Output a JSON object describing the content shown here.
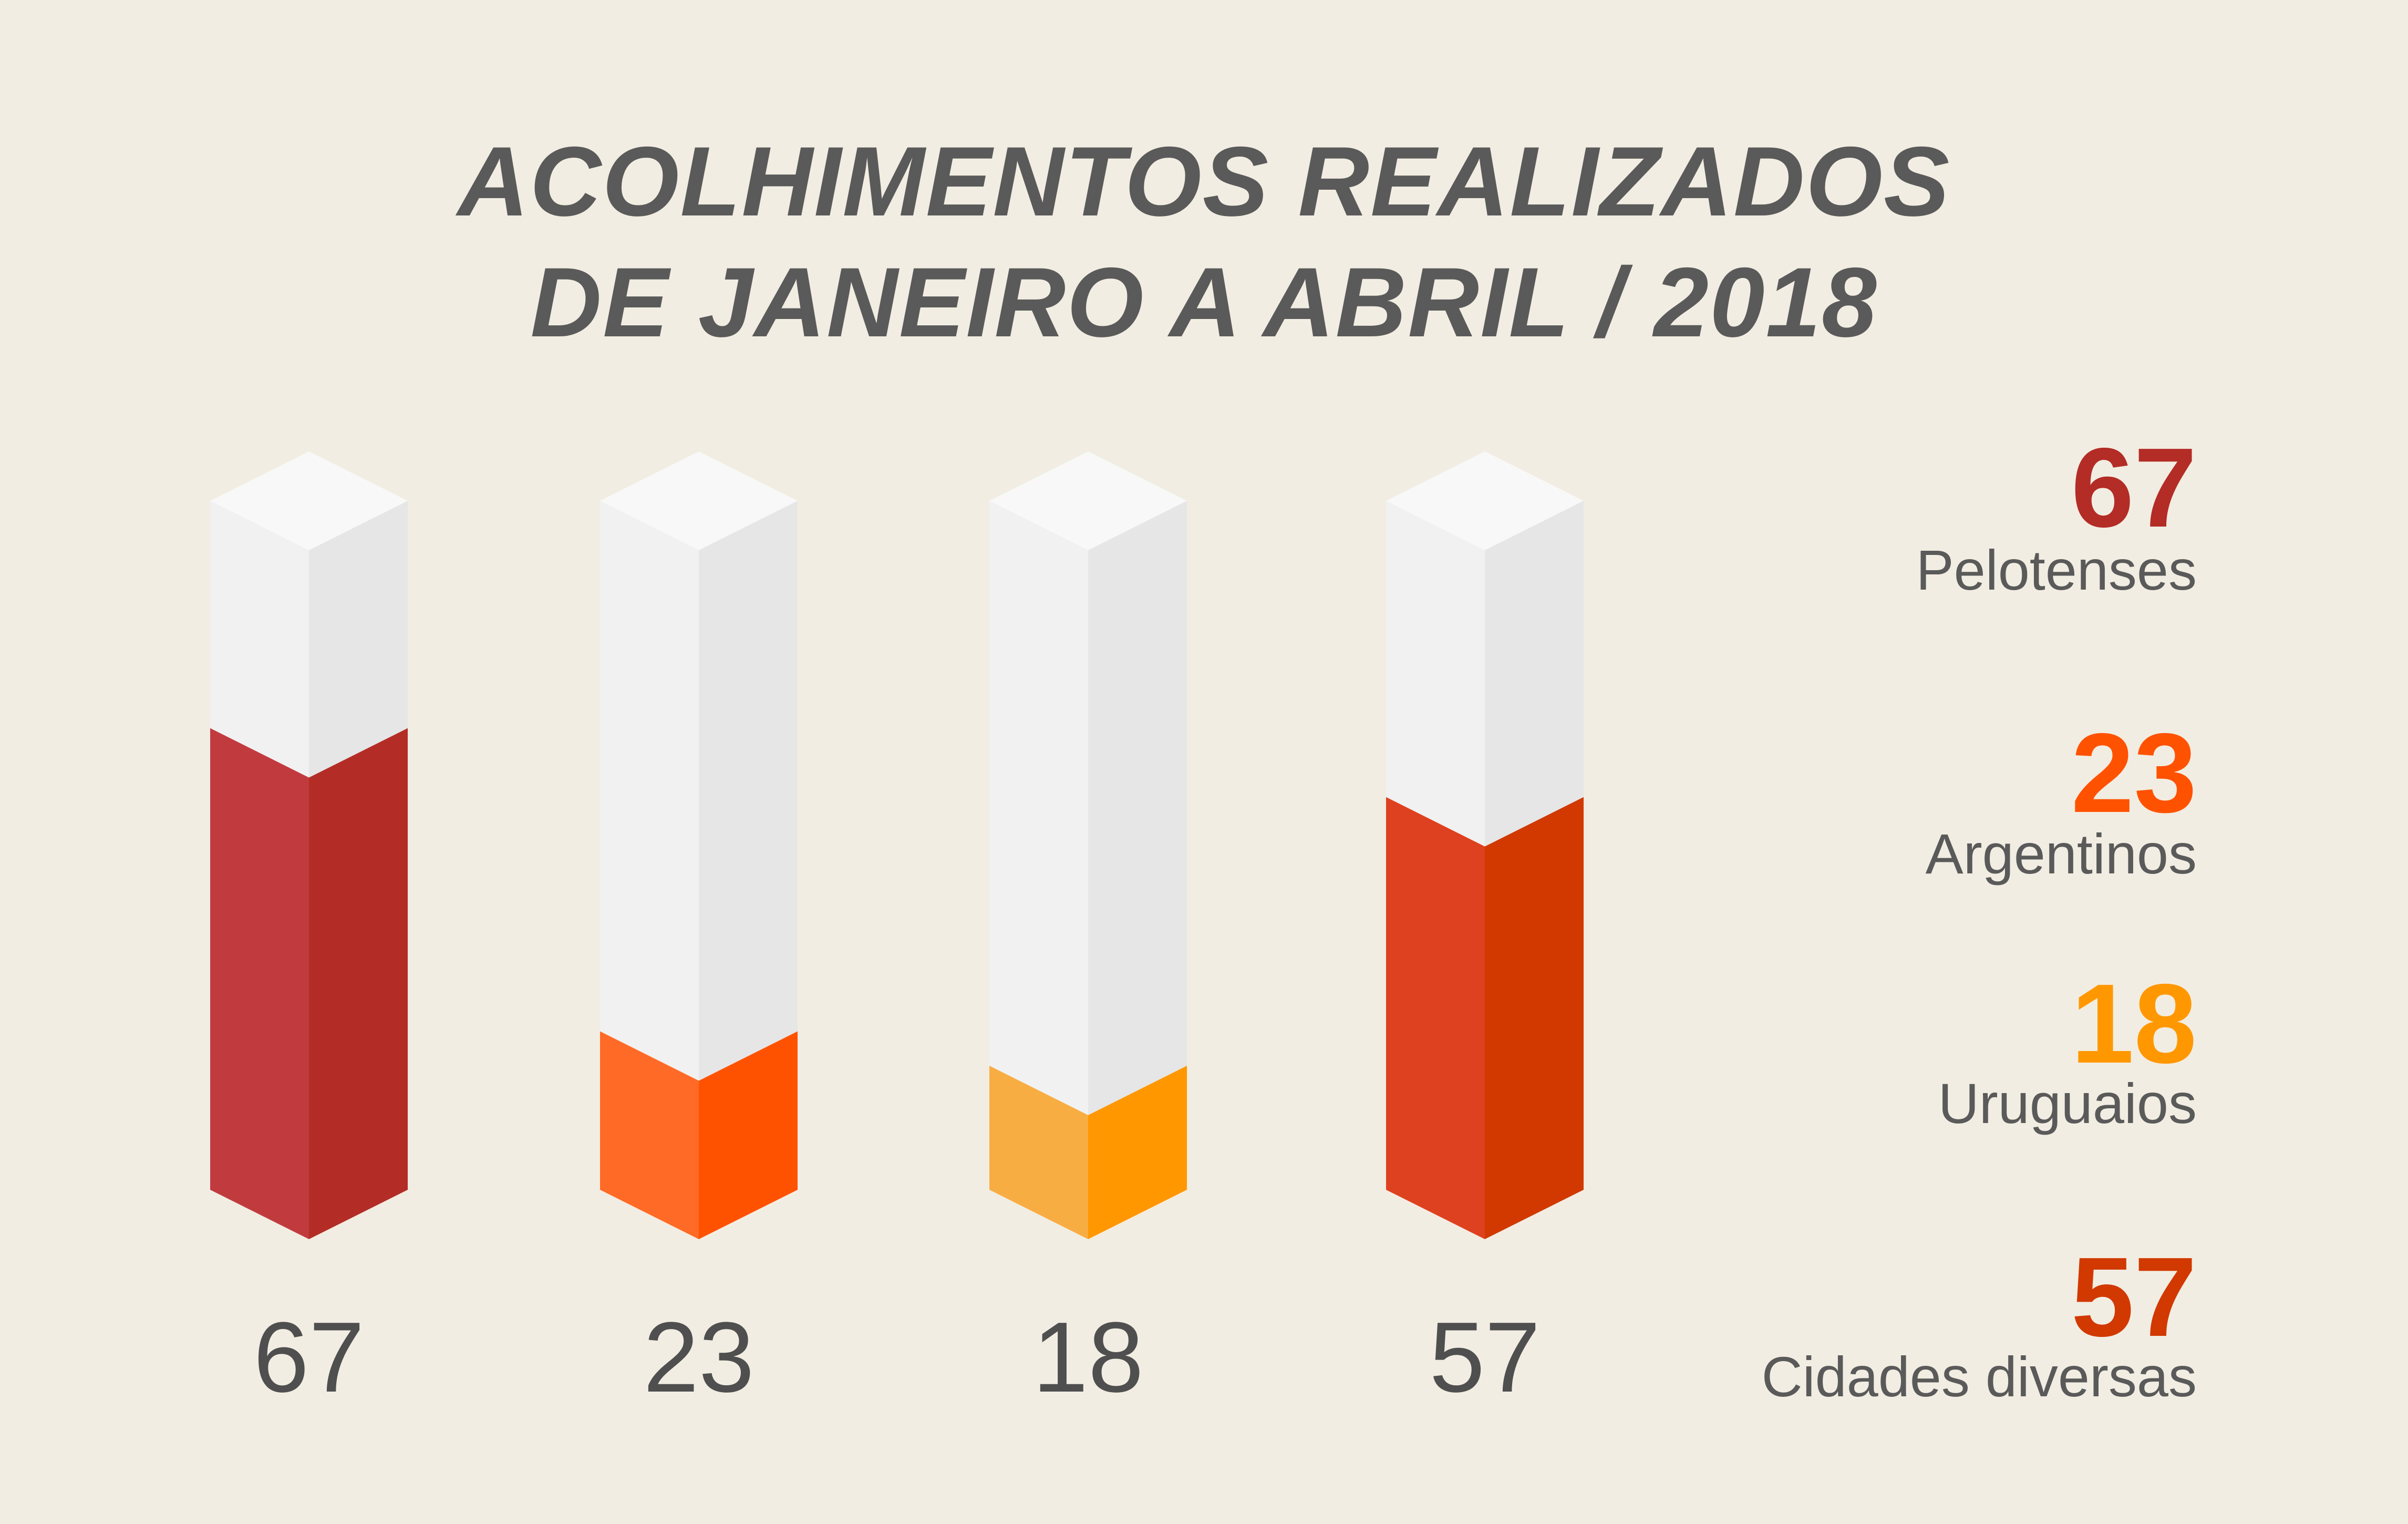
{
  "title": {
    "line1": "ACOLHIMENTOS REALIZADOS",
    "line2": "DE JANEIRO A ABRIL / 2018"
  },
  "chart_data": {
    "type": "bar",
    "title": "ACOLHIMENTOS REALIZADOS DE JANEIRO A ABRIL / 2018",
    "categories": [
      "Pelotenses",
      "Argentinos",
      "Uruguaios",
      "Cidades diversas"
    ],
    "values": [
      67,
      23,
      18,
      57
    ],
    "value_labels": [
      "67",
      "23",
      "18",
      "57"
    ],
    "ylim": [
      0,
      100
    ],
    "grid": false,
    "legend_position": "right",
    "colors": [
      {
        "front": "#c13b3e",
        "side": "#b32c26"
      },
      {
        "front": "#ff6a26",
        "side": "#ff5200"
      },
      {
        "front": "#f8ad42",
        "side": "#ff9800"
      },
      {
        "front": "#de411f",
        "side": "#d13900"
      }
    ]
  },
  "legend": [
    {
      "value": "67",
      "label": "Pelotenses",
      "color": "#b32c26"
    },
    {
      "value": "23",
      "label": "Argentinos",
      "color": "#ff5200"
    },
    {
      "value": "18",
      "label": "Uruguaios",
      "color": "#ff9800"
    },
    {
      "value": "57",
      "label": "Cidades diversas",
      "color": "#d13900"
    }
  ]
}
